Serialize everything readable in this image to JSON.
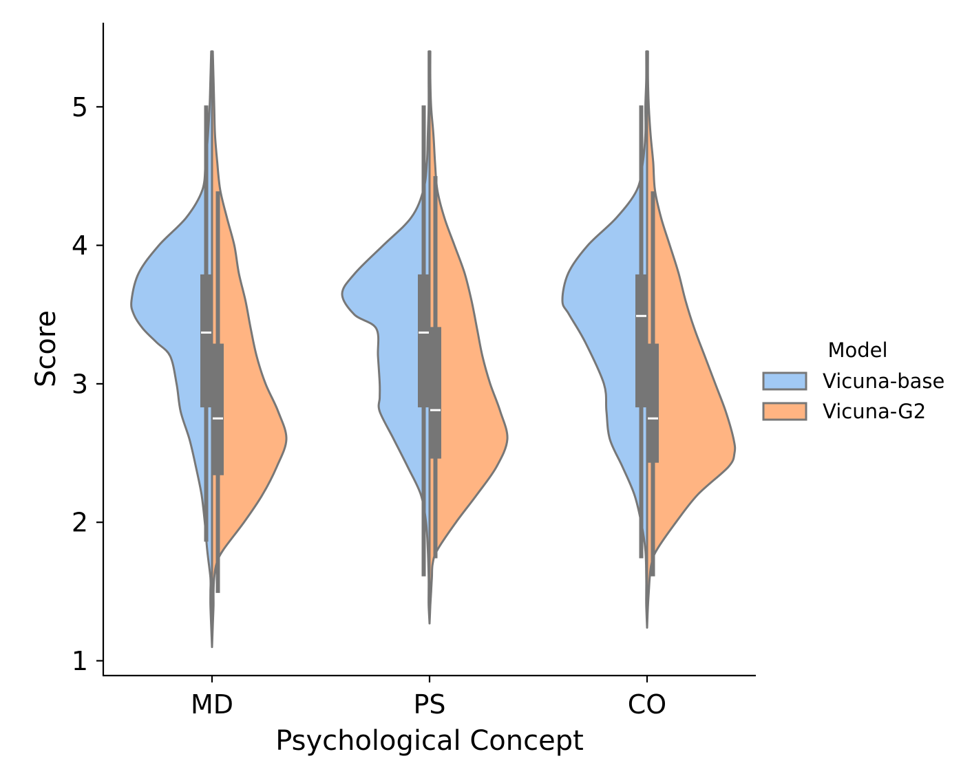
{
  "chart_data": {
    "type": "violin",
    "split": true,
    "xlabel": "Psychological Concept",
    "ylabel": "Score",
    "categories": [
      "MD",
      "PS",
      "CO"
    ],
    "ylim": [
      0.9,
      5.6
    ],
    "yticks": [
      1,
      2,
      3,
      4,
      5
    ],
    "grid": false,
    "legend": {
      "title": "Model",
      "placement": "right",
      "entries": [
        "Vicuna-base",
        "Vicuna-G2"
      ]
    },
    "colors": {
      "Vicuna-base": "#a1c9f4",
      "Vicuna-G2": "#ffb482",
      "outline": "#777777",
      "box": "#767676",
      "median": "#ffffff"
    },
    "series": [
      {
        "name": "Vicuna-base",
        "box": [
          {
            "category": "MD",
            "whisker_low": 1.86,
            "q1": 2.83,
            "median": 3.37,
            "q3": 3.79,
            "whisker_high": 5.01
          },
          {
            "category": "PS",
            "whisker_low": 1.61,
            "q1": 2.83,
            "median": 3.37,
            "q3": 3.79,
            "whisker_high": 5.01
          },
          {
            "category": "CO",
            "whisker_low": 1.74,
            "q1": 2.83,
            "median": 3.49,
            "q3": 3.79,
            "whisker_high": 5.01
          }
        ],
        "density_profiles": [
          {
            "category": "MD",
            "score": [
              5.4,
              5.2,
              5.0,
              4.8,
              4.6,
              4.4,
              4.2,
              4.0,
              3.8,
              3.6,
              3.5,
              3.4,
              3.3,
              3.2,
              3.0,
              2.8,
              2.6,
              2.4,
              2.2,
              2.0,
              1.8,
              1.6,
              1.5,
              1.4,
              1.25,
              1.1
            ],
            "relative_width": [
              0.01,
              0.02,
              0.03,
              0.05,
              0.08,
              0.12,
              0.32,
              0.66,
              0.91,
              1.0,
              0.97,
              0.86,
              0.69,
              0.52,
              0.44,
              0.39,
              0.28,
              0.2,
              0.13,
              0.09,
              0.06,
              0.02,
              0.02,
              0.02,
              0.01,
              0.0
            ]
          },
          {
            "category": "PS",
            "score": [
              5.4,
              5.2,
              5.0,
              4.8,
              4.6,
              4.4,
              4.2,
              4.0,
              3.8,
              3.65,
              3.5,
              3.4,
              3.2,
              3.0,
              2.9,
              2.8,
              2.6,
              2.4,
              2.2,
              2.0,
              1.8,
              1.6,
              1.5,
              1.4,
              1.27
            ],
            "relative_width": [
              0.01,
              0.01,
              0.01,
              0.02,
              0.03,
              0.07,
              0.21,
              0.53,
              0.85,
              1.0,
              0.86,
              0.61,
              0.59,
              0.57,
              0.57,
              0.57,
              0.41,
              0.25,
              0.1,
              0.04,
              0.02,
              0.01,
              0.01,
              0.01,
              0.0
            ]
          },
          {
            "category": "CO",
            "score": [
              5.4,
              5.2,
              5.0,
              4.8,
              4.6,
              4.4,
              4.2,
              4.0,
              3.8,
              3.6,
              3.5,
              3.3,
              3.0,
              2.8,
              2.6,
              2.4,
              2.2,
              2.0,
              1.8,
              1.6,
              1.5,
              1.4,
              1.24
            ],
            "relative_width": [
              0.01,
              0.01,
              0.02,
              0.02,
              0.05,
              0.12,
              0.36,
              0.7,
              0.93,
              1.0,
              0.92,
              0.73,
              0.51,
              0.48,
              0.44,
              0.29,
              0.15,
              0.07,
              0.02,
              0.01,
              0.01,
              0.01,
              0.0
            ]
          }
        ]
      },
      {
        "name": "Vicuna-G2",
        "box": [
          {
            "category": "MD",
            "whisker_low": 1.49,
            "q1": 2.34,
            "median": 2.75,
            "q3": 3.29,
            "whisker_high": 4.39
          },
          {
            "category": "PS",
            "whisker_low": 1.74,
            "q1": 2.46,
            "median": 2.81,
            "q3": 3.41,
            "whisker_high": 4.5
          },
          {
            "category": "CO",
            "whisker_low": 1.61,
            "q1": 2.43,
            "median": 2.75,
            "q3": 3.29,
            "whisker_high": 4.39
          }
        ],
        "density_profiles": [
          {
            "category": "MD",
            "score": [
              5.4,
              5.2,
              5.0,
              4.8,
              4.6,
              4.4,
              4.2,
              4.0,
              3.8,
              3.6,
              3.4,
              3.2,
              3.0,
              2.8,
              2.6,
              2.4,
              2.2,
              2.0,
              1.8,
              1.7,
              1.6,
              1.5,
              1.4,
              1.25,
              1.1
            ],
            "relative_width": [
              0.01,
              0.02,
              0.03,
              0.04,
              0.07,
              0.11,
              0.2,
              0.3,
              0.36,
              0.45,
              0.52,
              0.6,
              0.72,
              0.89,
              1.0,
              0.87,
              0.68,
              0.43,
              0.15,
              0.06,
              0.03,
              0.02,
              0.02,
              0.01,
              0.0
            ]
          },
          {
            "category": "PS",
            "score": [
              5.4,
              5.2,
              5.0,
              4.8,
              4.6,
              4.4,
              4.2,
              4.0,
              3.8,
              3.6,
              3.4,
              3.2,
              3.0,
              2.8,
              2.6,
              2.4,
              2.2,
              2.0,
              1.8,
              1.7,
              1.6,
              1.5,
              1.4,
              1.27
            ],
            "relative_width": [
              0.01,
              0.01,
              0.02,
              0.05,
              0.07,
              0.1,
              0.19,
              0.32,
              0.45,
              0.54,
              0.61,
              0.68,
              0.78,
              0.91,
              1.0,
              0.86,
              0.61,
              0.34,
              0.1,
              0.04,
              0.03,
              0.02,
              0.01,
              0.0
            ]
          },
          {
            "category": "CO",
            "score": [
              5.4,
              5.2,
              5.0,
              4.8,
              4.6,
              4.4,
              4.2,
              4.0,
              3.8,
              3.6,
              3.4,
              3.2,
              3.0,
              2.8,
              2.6,
              2.5,
              2.4,
              2.2,
              2.0,
              1.8,
              1.7,
              1.6,
              1.5,
              1.4,
              1.24
            ],
            "relative_width": [
              0.01,
              0.01,
              0.02,
              0.04,
              0.07,
              0.09,
              0.16,
              0.26,
              0.36,
              0.44,
              0.54,
              0.66,
              0.78,
              0.9,
              0.99,
              1.0,
              0.93,
              0.58,
              0.33,
              0.11,
              0.05,
              0.03,
              0.02,
              0.01,
              0.0
            ]
          }
        ]
      }
    ]
  }
}
